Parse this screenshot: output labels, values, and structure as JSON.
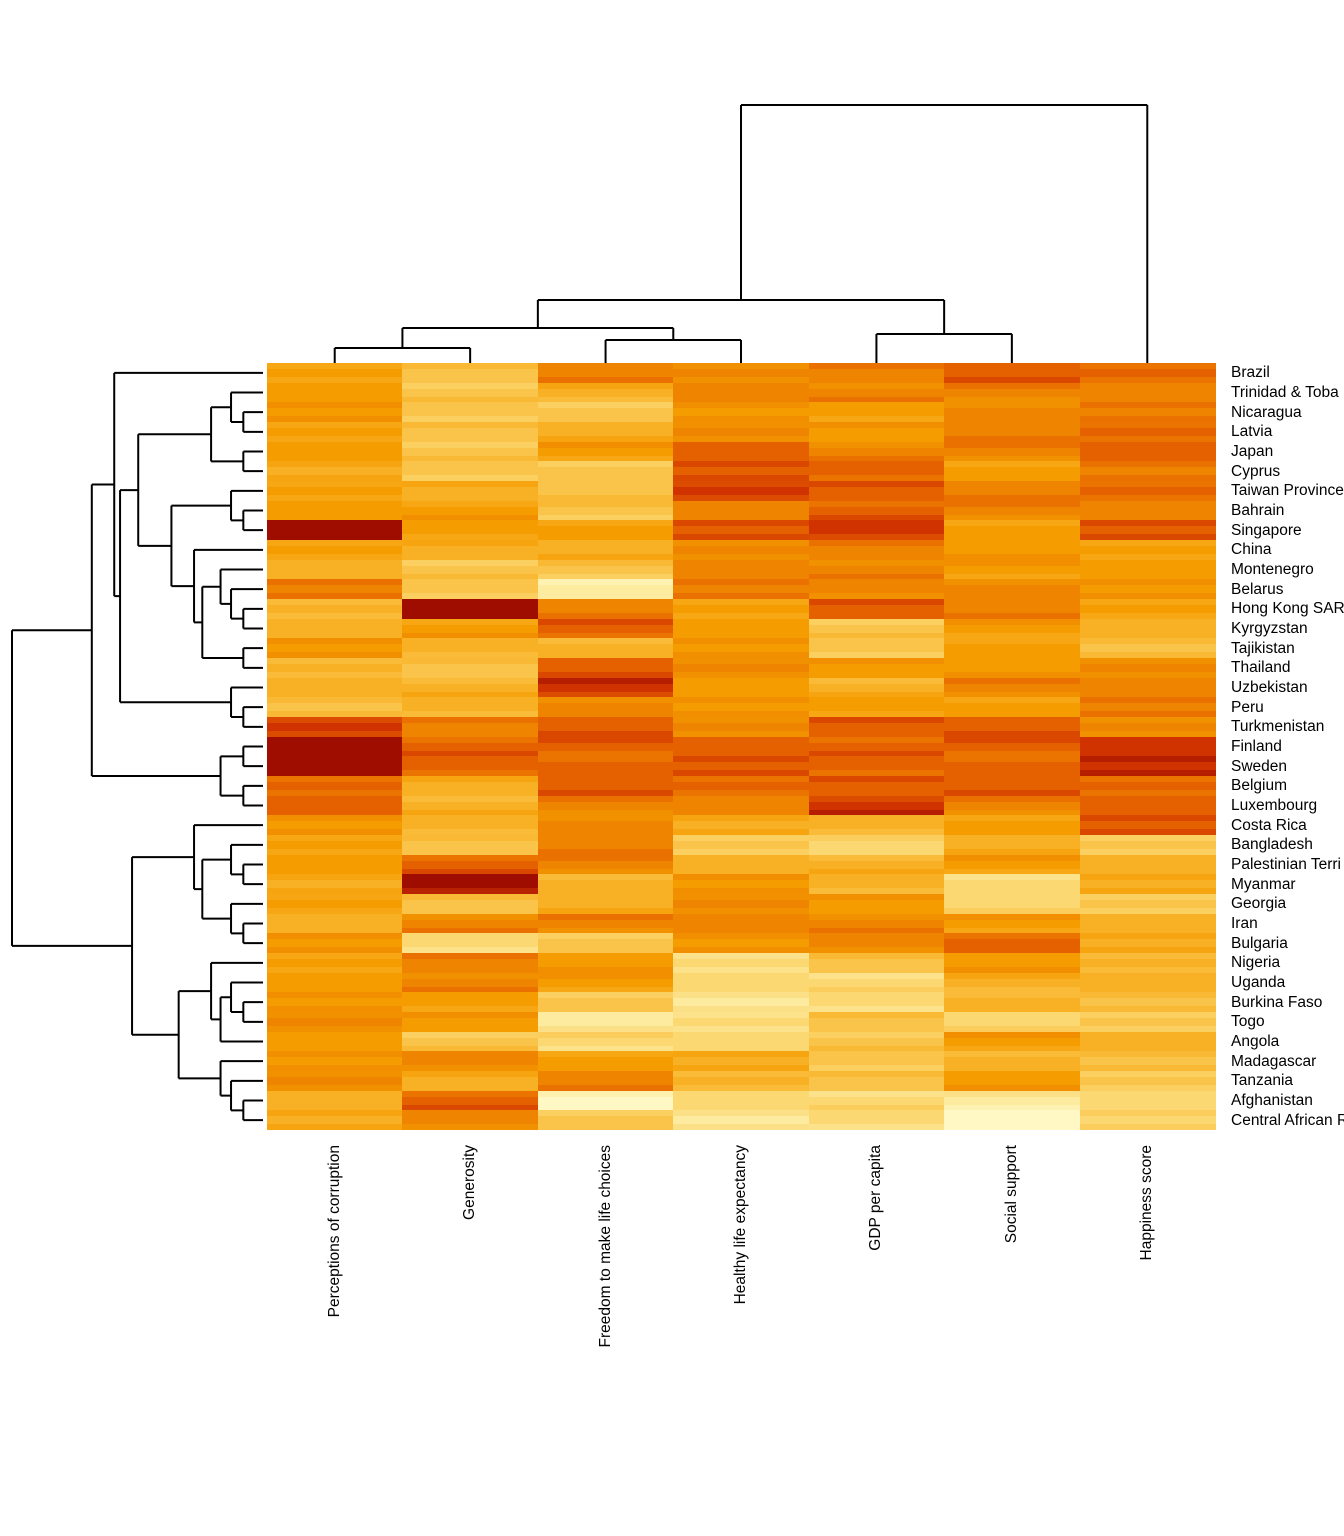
{
  "figure": {
    "background_color": "#FFFFFF",
    "dendrogram_line_color": "#000000",
    "label_text_color": "#000000"
  },
  "chart_data": {
    "type": "heatmap",
    "title": "",
    "xlabel": "",
    "ylabel": "",
    "legend": "none",
    "grid": "off",
    "dendrograms": {
      "rows": "left",
      "columns": "top"
    },
    "column_cluster_structure": "(((Perceptions of corruption, Generosity),(Freedom to make life choices, Healthy life expectancy)),(GDP per capita, Social support)),(Happiness score)",
    "columns": [
      "Perceptions of corruption",
      "Generosity",
      "Freedom to make life choices",
      "Healthy life expectancy",
      "GDP per capita",
      "Social support",
      "Happiness score"
    ],
    "value_scale": {
      "min": 0,
      "max": 9,
      "note": "color intensity levels estimated from cell colors; no colorbar shown in figure"
    },
    "palette": {
      "stops": [
        [
          0.0,
          "#FFF8C4"
        ],
        [
          0.11,
          "#FDEBA0"
        ],
        [
          0.22,
          "#FBD873"
        ],
        [
          0.33,
          "#FAC54B"
        ],
        [
          0.44,
          "#F8B125"
        ],
        [
          0.56,
          "#F59B00"
        ],
        [
          0.67,
          "#EF8300"
        ],
        [
          0.78,
          "#E56000"
        ],
        [
          0.89,
          "#D03300"
        ],
        [
          1.0,
          "#9E0D00"
        ]
      ]
    },
    "rows": [
      {
        "label": "Brazil",
        "values": [
          5,
          3,
          6,
          6,
          6,
          7,
          7
        ]
      },
      {
        "label": "Trinidad & Toba",
        "values": [
          5,
          3,
          4,
          6,
          6,
          6,
          6
        ]
      },
      {
        "label": "Nicaragua",
        "values": [
          5,
          3,
          3,
          5,
          5,
          6,
          6
        ]
      },
      {
        "label": "Latvia",
        "values": [
          5,
          3,
          4,
          6,
          5,
          6,
          7
        ]
      },
      {
        "label": "Japan",
        "values": [
          5,
          3,
          5,
          7,
          6,
          6,
          7
        ]
      },
      {
        "label": "Cyprus",
        "values": [
          4,
          3,
          3,
          7,
          7,
          5,
          6
        ]
      },
      {
        "label": "Taiwan Province",
        "values": [
          5,
          4,
          3,
          8,
          7,
          6,
          7
        ]
      },
      {
        "label": "Bahrain",
        "values": [
          5,
          5,
          3,
          6,
          7,
          6,
          6
        ]
      },
      {
        "label": "Singapore",
        "values": [
          9,
          5,
          5,
          7,
          8,
          5,
          7
        ]
      },
      {
        "label": "China",
        "values": [
          5,
          4,
          4,
          6,
          6,
          5,
          5
        ]
      },
      {
        "label": "Montenegro",
        "values": [
          4,
          3,
          3,
          6,
          6,
          5,
          5
        ]
      },
      {
        "label": "Belarus",
        "values": [
          6,
          3,
          1,
          6,
          6,
          6,
          5
        ]
      },
      {
        "label": "Hong Kong SAR",
        "values": [
          4,
          9,
          6,
          5,
          7,
          6,
          5
        ]
      },
      {
        "label": "Kyrgyzstan",
        "values": [
          4,
          5,
          7,
          5,
          3,
          5,
          4
        ]
      },
      {
        "label": "Tajikistan",
        "values": [
          5,
          4,
          4,
          5,
          3,
          5,
          3
        ]
      },
      {
        "label": "Thailand",
        "values": [
          4,
          3,
          7,
          6,
          5,
          5,
          6
        ]
      },
      {
        "label": "Uzbekistan",
        "values": [
          4,
          4,
          8,
          5,
          4,
          6,
          6
        ]
      },
      {
        "label": "Peru",
        "values": [
          3,
          4,
          6,
          5,
          5,
          5,
          6
        ]
      },
      {
        "label": "Turkmenistan",
        "values": [
          8,
          6,
          7,
          6,
          7,
          7,
          6
        ]
      },
      {
        "label": "Finland",
        "values": [
          9,
          7,
          7,
          7,
          7,
          7,
          8
        ]
      },
      {
        "label": "Sweden",
        "values": [
          9,
          7,
          7,
          7,
          7,
          7,
          8
        ]
      },
      {
        "label": "Belgium",
        "values": [
          7,
          4,
          7,
          7,
          7,
          7,
          7
        ]
      },
      {
        "label": "Luxembourg",
        "values": [
          7,
          4,
          6,
          6,
          8,
          6,
          7
        ]
      },
      {
        "label": "Costa Rica",
        "values": [
          5,
          4,
          6,
          4,
          4,
          5,
          7
        ]
      },
      {
        "label": "Bangladesh",
        "values": [
          5,
          3,
          6,
          3,
          2,
          4,
          3
        ]
      },
      {
        "label": "Palestinian Terri",
        "values": [
          5,
          7,
          6,
          4,
          4,
          5,
          4
        ]
      },
      {
        "label": "Myanmar",
        "values": [
          4,
          9,
          4,
          5,
          4,
          2,
          4
        ]
      },
      {
        "label": "Georgia",
        "values": [
          5,
          3,
          4,
          6,
          5,
          2,
          3
        ]
      },
      {
        "label": "Iran",
        "values": [
          4,
          6,
          6,
          6,
          6,
          5,
          4
        ]
      },
      {
        "label": "Bulgaria",
        "values": [
          5,
          2,
          3,
          5,
          6,
          7,
          4
        ]
      },
      {
        "label": "Nigeria",
        "values": [
          5,
          6,
          5,
          2,
          3,
          5,
          4
        ]
      },
      {
        "label": "Uganda",
        "values": [
          5,
          6,
          5,
          2,
          2,
          4,
          4
        ]
      },
      {
        "label": "Burkina Faso",
        "values": [
          5,
          5,
          3,
          1,
          2,
          4,
          3
        ]
      },
      {
        "label": "Togo",
        "values": [
          6,
          5,
          1,
          2,
          3,
          2,
          3
        ]
      },
      {
        "label": "Angola",
        "values": [
          5,
          3,
          2,
          2,
          3,
          5,
          4
        ]
      },
      {
        "label": "Madagascar",
        "values": [
          5,
          6,
          5,
          4,
          3,
          4,
          3
        ]
      },
      {
        "label": "Tanzania",
        "values": [
          6,
          4,
          6,
          4,
          3,
          5,
          3
        ]
      },
      {
        "label": "Afghanistan",
        "values": [
          4,
          7,
          0,
          2,
          2,
          1,
          2
        ]
      },
      {
        "label": "Central African R",
        "values": [
          4,
          6,
          3,
          1,
          2,
          0,
          2
        ]
      }
    ]
  }
}
